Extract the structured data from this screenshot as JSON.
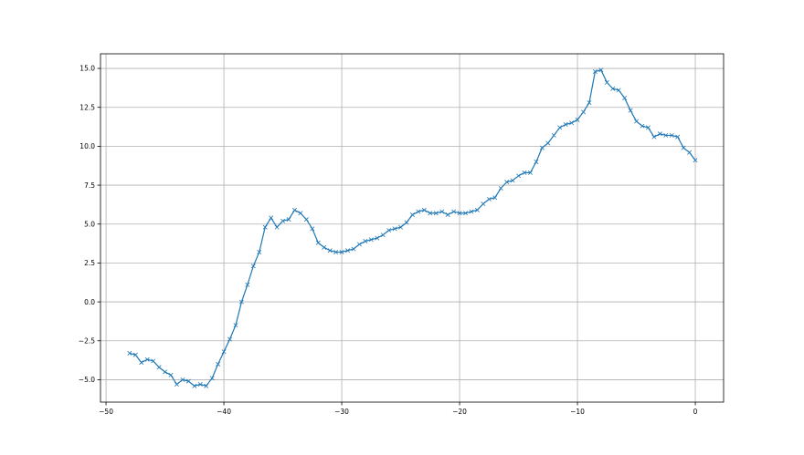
{
  "chart_data": {
    "type": "line",
    "title": "",
    "xlabel": "",
    "ylabel": "",
    "xlim": [
      -50.47,
      2.4
    ],
    "ylim": [
      -6.44,
      15.94
    ],
    "grid": true,
    "marker": "x",
    "color": "#1f77b4",
    "xticks": [
      -50,
      -40,
      -30,
      -20,
      -10,
      0
    ],
    "xtick_labels": [
      "−50",
      "−40",
      "−30",
      "−20",
      "−10",
      "0"
    ],
    "yticks": [
      -5,
      -2.5,
      0,
      2.5,
      5,
      7.5,
      10,
      12.5,
      15
    ],
    "ytick_labels": [
      "−5.0",
      "−2.5",
      "0.0",
      "2.5",
      "5.0",
      "7.5",
      "10.0",
      "12.5",
      "15.0"
    ],
    "x_start": -48,
    "x_step": 0.5,
    "values": [
      -3.3,
      -3.4,
      -3.9,
      -3.7,
      -3.8,
      -4.2,
      -4.5,
      -4.7,
      -5.3,
      -5.0,
      -5.1,
      -5.4,
      -5.3,
      -5.4,
      -4.9,
      -4.0,
      -3.2,
      -2.4,
      -1.5,
      0.0,
      1.1,
      2.3,
      3.2,
      4.8,
      5.4,
      4.8,
      5.2,
      5.3,
      5.9,
      5.7,
      5.3,
      4.7,
      3.8,
      3.5,
      3.3,
      3.2,
      3.2,
      3.3,
      3.4,
      3.7,
      3.9,
      4.0,
      4.1,
      4.3,
      4.6,
      4.7,
      4.8,
      5.1,
      5.6,
      5.8,
      5.9,
      5.7,
      5.7,
      5.8,
      5.6,
      5.8,
      5.7,
      5.7,
      5.8,
      5.9,
      6.3,
      6.6,
      6.7,
      7.3,
      7.7,
      7.8,
      8.1,
      8.3,
      8.3,
      9.0,
      9.9,
      10.2,
      10.7,
      11.2,
      11.4,
      11.5,
      11.7,
      12.2,
      12.8,
      14.8,
      14.9,
      14.1,
      13.7,
      13.6,
      13.1,
      12.3,
      11.6,
      11.3,
      11.2,
      10.6,
      10.8,
      10.7,
      10.7,
      10.6,
      9.9,
      9.6,
      9.1
    ]
  }
}
